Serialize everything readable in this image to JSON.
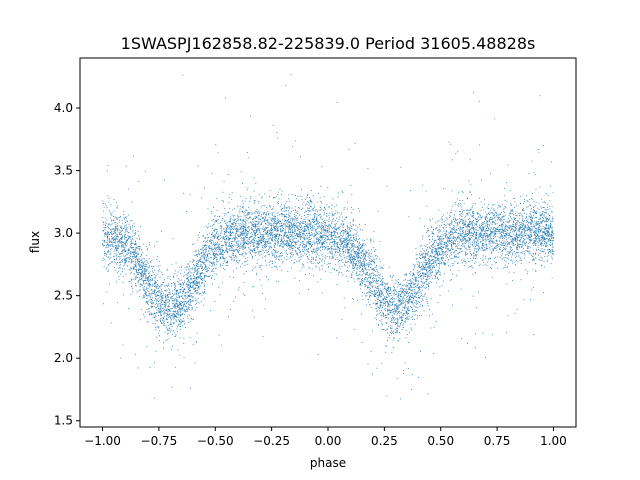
{
  "chart_data": {
    "type": "scatter",
    "title": "1SWASPJ162858.82-225839.0 Period 31605.48828s",
    "xlabel": "phase",
    "ylabel": "flux",
    "xlim": [
      -1.1,
      1.1
    ],
    "ylim": [
      1.45,
      4.4
    ],
    "x_ticks": [
      -1.0,
      -0.75,
      -0.5,
      -0.25,
      0.0,
      0.25,
      0.5,
      0.75,
      1.0
    ],
    "x_tick_labels": [
      "−1.00",
      "−0.75",
      "−0.50",
      "−0.25",
      "0.00",
      "0.25",
      "0.50",
      "0.75",
      "1.00"
    ],
    "y_ticks": [
      1.5,
      2.0,
      2.5,
      3.0,
      3.5,
      4.0
    ],
    "y_tick_labels": [
      "1.5",
      "2.0",
      "2.5",
      "3.0",
      "3.5",
      "4.0"
    ],
    "grid": false,
    "legend": "none",
    "marker_color": "#1f77b4",
    "light_curve": {
      "x_range": [
        -1.0,
        1.0
      ],
      "baseline_flux": 3.0,
      "scatter_sigma": 0.12,
      "dips": [
        {
          "phase": -0.7,
          "min_flux": 2.4,
          "width": 0.11
        },
        {
          "phase": 0.3,
          "min_flux": 2.4,
          "width": 0.11
        }
      ],
      "n_points": 9000
    }
  }
}
